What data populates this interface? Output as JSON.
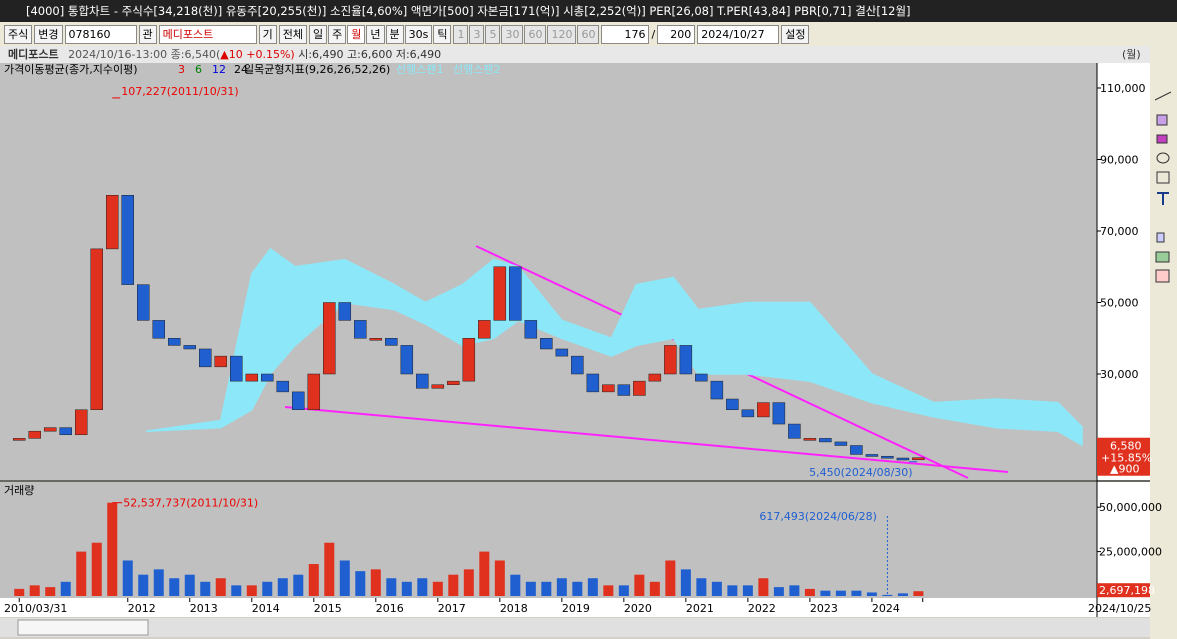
{
  "title_bar": {
    "text": "[4000] 통합차트 - 주식수[34,218(천)] 유동주[20,255(천)] 소진율[4,60%] 액면가[500] 자본금[171(억)] 시총[2,252(억)] PER[26,08] T.PER[43,84] PBR[0,71] 결산[12월]"
  },
  "toolbar": {
    "market": "주식",
    "change": "변경",
    "code": "078160",
    "gwan": "관",
    "name": "메디포스트",
    "gi": "기",
    "all": "전체",
    "periods": [
      "일",
      "주",
      "월",
      "년",
      "분",
      "30s",
      "틱"
    ],
    "intervals": [
      "1",
      "3",
      "5",
      "30",
      "60",
      "120",
      "60"
    ],
    "count": "176",
    "slash": "/",
    "total": "200",
    "date": "2024/10/27",
    "settings": "설정"
  },
  "info": {
    "name": "메디포스트",
    "time": "2024/10/16-13:00 종:6,540(",
    "delta": "▲10 +0.15%)",
    "ohl": "시:6,490 고:6,600 저:6,490",
    "period": "(월)"
  },
  "legend": {
    "ma_title": "가격이동평균(종가,지수이평)",
    "ma_periods": [
      3,
      6,
      12,
      24
    ],
    "ichimoku": "일목균형지표(9,26,26,52,26)"
  },
  "chart_data": [
    {
      "type": "candlestick",
      "x": [
        2010.25,
        2010.5,
        2010.75,
        2011,
        2011.25,
        2011.5,
        2011.75,
        2012,
        2012.25,
        2012.5,
        2012.75,
        2013,
        2013.25,
        2013.5,
        2013.75,
        2014,
        2014.25,
        2014.5,
        2014.75,
        2015,
        2015.25,
        2015.5,
        2015.75,
        2016,
        2016.25,
        2016.5,
        2016.75,
        2017,
        2017.25,
        2017.5,
        2017.75,
        2018,
        2018.25,
        2018.5,
        2018.75,
        2019,
        2019.25,
        2019.5,
        2019.75,
        2020,
        2020.25,
        2020.5,
        2020.75,
        2021,
        2021.25,
        2021.5,
        2021.75,
        2022,
        2022.25,
        2022.5,
        2022.75,
        2023,
        2023.25,
        2023.5,
        2023.75,
        2024,
        2024.25,
        2024.5,
        2024.75
      ],
      "values": [
        12000,
        14000,
        15000,
        13000,
        20000,
        65000,
        80000,
        55000,
        45000,
        40000,
        38000,
        37000,
        32000,
        35000,
        28000,
        30000,
        28000,
        25000,
        20000,
        30000,
        50000,
        45000,
        40000,
        40000,
        38000,
        30000,
        26000,
        27000,
        28000,
        40000,
        45000,
        60000,
        45000,
        40000,
        37000,
        35000,
        30000,
        25000,
        27000,
        24000,
        28000,
        30000,
        38000,
        30000,
        28000,
        23000,
        20000,
        18000,
        22000,
        16000,
        12000,
        12000,
        11000,
        10000,
        7500,
        7000,
        6500,
        6000,
        6580
      ],
      "cloud": {
        "x": [
          2012.3,
          2013.5,
          2014,
          2014.3,
          2014.7,
          2015.5,
          2016.3,
          2016.8,
          2017.4,
          2017.9,
          2018.3,
          2019,
          2019.8,
          2020.2,
          2020.8,
          2021.2,
          2022,
          2023,
          2024,
          2025,
          2026,
          2027,
          2027.4
        ],
        "series": [
          {
            "name": "선행스팬1",
            "color": "#8ce8f8",
            "values": [
              14000,
              17000,
              58000,
              65000,
              60000,
              62000,
              55000,
              50000,
              55000,
              62000,
              60000,
              45000,
              40000,
              55000,
              57000,
              48000,
              50000,
              50000,
              30000,
              22000,
              23000,
              22000,
              15000
            ]
          },
          {
            "name": "선행스팬2",
            "color": "#8ce8f8",
            "values": [
              14000,
              15000,
              20000,
              30000,
              38000,
              50000,
              48000,
              44000,
              38000,
              40000,
              45000,
              40000,
              35000,
              38000,
              40000,
              30000,
              30000,
              28000,
              22000,
              18000,
              15000,
              14000,
              10000
            ]
          }
        ]
      },
      "ylim": [
        350,
        112240
      ],
      "yticks": [
        {
          "value": 30000,
          "label": "30,000"
        },
        {
          "value": 50000,
          "label": "50,000"
        },
        {
          "value": 70000,
          "label": "70,000"
        },
        {
          "value": 90000,
          "label": "90,000"
        },
        {
          "value": 110000,
          "label": "110,000"
        }
      ],
      "xlim": [
        2009.94,
        2027.63
      ],
      "xticks": [
        {
          "value": 2010.25,
          "label": "2010/03/31"
        },
        2012,
        2013,
        2014,
        2015,
        2016,
        2017,
        2018,
        2019,
        2020,
        2021,
        2022,
        2023,
        2024,
        {
          "value": 2024.82,
          "label": "2024/10/25"
        }
      ],
      "annotations": [
        {
          "text": "107,227(2011/10/31)",
          "value": 107227,
          "x": 2011.75
        },
        {
          "text": "5,450(2024/08/30)",
          "value": 5450,
          "x": 2024.6
        }
      ],
      "last": {
        "value": 6580,
        "label": "6,580"
      },
      "change_pct": "+15.85%",
      "change": "▲900"
    },
    {
      "type": "bar",
      "title": "거래량",
      "x": [
        2010.25,
        2010.5,
        2010.75,
        2011,
        2011.25,
        2011.5,
        2011.75,
        2012,
        2012.25,
        2012.5,
        2012.75,
        2013,
        2013.25,
        2013.5,
        2013.75,
        2014,
        2014.25,
        2014.5,
        2014.75,
        2015,
        2015.25,
        2015.5,
        2015.75,
        2016,
        2016.25,
        2016.5,
        2016.75,
        2017,
        2017.25,
        2017.5,
        2017.75,
        2018,
        2018.25,
        2018.5,
        2018.75,
        2019,
        2019.25,
        2019.5,
        2019.75,
        2020,
        2020.25,
        2020.5,
        2020.75,
        2021,
        2021.25,
        2021.5,
        2021.75,
        2022,
        2022.25,
        2022.5,
        2022.75,
        2023,
        2023.25,
        2023.5,
        2023.75,
        2024,
        2024.25,
        2024.5,
        2024.75
      ],
      "values": [
        4000000,
        6000000,
        5000000,
        8000000,
        25000000,
        30000000,
        52537737,
        20000000,
        12000000,
        15000000,
        10000000,
        12000000,
        8000000,
        10000000,
        6000000,
        6000000,
        8000000,
        10000000,
        12000000,
        18000000,
        30000000,
        20000000,
        14000000,
        15000000,
        10000000,
        8000000,
        10000000,
        8000000,
        12000000,
        15000000,
        25000000,
        20000000,
        12000000,
        8000000,
        8000000,
        10000000,
        8000000,
        10000000,
        6000000,
        6000000,
        12000000,
        8000000,
        20000000,
        15000000,
        10000000,
        8000000,
        6000000,
        6000000,
        10000000,
        5000000,
        6000000,
        4000000,
        3000000,
        3000000,
        3000000,
        2000000,
        617493,
        1500000,
        2697198
      ],
      "ylim": [
        0,
        64200000
      ],
      "yticks": [
        {
          "value": 25000000,
          "label": "25,000,000"
        },
        {
          "value": 50000000,
          "label": "50,000,000"
        }
      ],
      "annotations": [
        {
          "text": "52,537,737(2011/10/31)",
          "value": 52537737,
          "x": 2011.75
        },
        {
          "text": "617,493(2024/06/28)",
          "value": 617493,
          "x": 2024.25
        }
      ],
      "last": {
        "value": 2697198,
        "label": "2,697,198"
      }
    }
  ]
}
